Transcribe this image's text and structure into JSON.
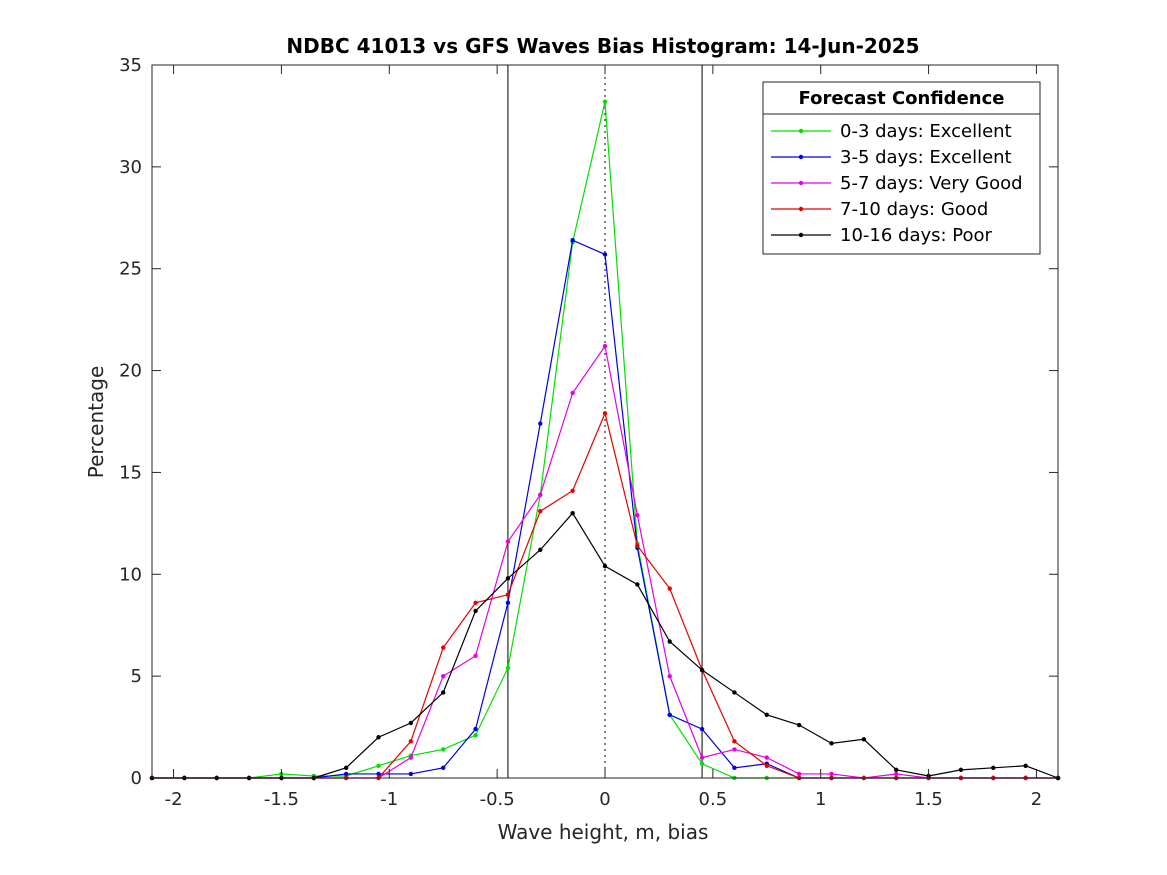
{
  "chart_data": {
    "type": "line",
    "title": "NDBC 41013 vs GFS Waves Bias Histogram: 14-Jun-2025",
    "xlabel": "Wave height, m, bias",
    "ylabel": "Percentage",
    "xlim": [
      -2.1,
      2.1
    ],
    "ylim": [
      0,
      35
    ],
    "xticks": [
      -2,
      -1.5,
      -1,
      -0.5,
      0,
      0.5,
      1,
      1.5,
      2
    ],
    "xtick_labels": [
      "-2",
      "-1.5",
      "-1",
      "-0.5",
      "0",
      "0.5",
      "1",
      "1.5",
      "2"
    ],
    "yticks": [
      0,
      5,
      10,
      15,
      20,
      25,
      30,
      35
    ],
    "ytick_labels": [
      "0",
      "5",
      "10",
      "15",
      "20",
      "25",
      "30",
      "35"
    ],
    "reference_lines": {
      "solid_x": [
        -0.45,
        0.45
      ],
      "dotted_x": [
        0
      ]
    },
    "x": [
      -2.1,
      -1.95,
      -1.8,
      -1.65,
      -1.5,
      -1.35,
      -1.2,
      -1.05,
      -0.9,
      -0.75,
      -0.6,
      -0.45,
      -0.3,
      -0.15,
      0,
      0.15,
      0.3,
      0.45,
      0.6,
      0.75,
      0.9,
      1.05,
      1.2,
      1.35,
      1.5,
      1.65,
      1.8,
      1.95,
      2.1
    ],
    "series": [
      {
        "name": "0-3 days: Excellent",
        "color": "#00e000",
        "values": [
          0,
          0,
          0,
          0,
          0.2,
          0.1,
          0.1,
          0.6,
          1.1,
          1.4,
          2.1,
          5.4,
          13.9,
          26.3,
          33.2,
          11.5,
          3.1,
          0.7,
          0,
          0,
          0,
          0,
          0,
          0,
          0,
          0,
          0,
          0,
          0
        ]
      },
      {
        "name": "3-5 days: Excellent",
        "color": "#0000e6",
        "values": [
          0,
          0,
          0,
          0,
          0,
          0,
          0.2,
          0.2,
          0.2,
          0.5,
          2.4,
          8.6,
          17.4,
          26.4,
          25.7,
          11.3,
          3.1,
          2.4,
          0.5,
          0.7,
          0,
          0,
          0,
          0,
          0,
          0,
          0,
          0,
          0
        ]
      },
      {
        "name": "5-7 days: Very Good",
        "color": "#e600e6",
        "values": [
          0,
          0,
          0,
          0,
          0,
          0,
          0,
          0,
          1.0,
          5.0,
          6.0,
          11.6,
          13.9,
          18.9,
          21.2,
          12.9,
          5.0,
          1.0,
          1.4,
          1.0,
          0.2,
          0.2,
          0,
          0.2,
          0,
          0,
          0,
          0,
          0
        ]
      },
      {
        "name": "7-10 days: Good",
        "color": "#e60000",
        "values": [
          0,
          0,
          0,
          0,
          0,
          0,
          0,
          0,
          1.8,
          6.4,
          8.6,
          9.0,
          13.1,
          14.1,
          17.9,
          11.4,
          9.3,
          5.3,
          1.8,
          0.6,
          0,
          0,
          0,
          0,
          0,
          0,
          0,
          0,
          0
        ]
      },
      {
        "name": "10-16 days: Poor",
        "color": "#000000",
        "values": [
          0,
          0,
          0,
          0,
          0,
          0,
          0.5,
          2.0,
          2.7,
          4.2,
          8.2,
          9.8,
          11.2,
          13.0,
          10.4,
          9.5,
          6.7,
          5.3,
          4.2,
          3.1,
          2.6,
          1.7,
          1.9,
          0.4,
          0.1,
          0.4,
          0.5,
          0.6,
          0
        ]
      }
    ],
    "legend": {
      "title": "Forecast Confidence",
      "placement": "top-right"
    }
  }
}
